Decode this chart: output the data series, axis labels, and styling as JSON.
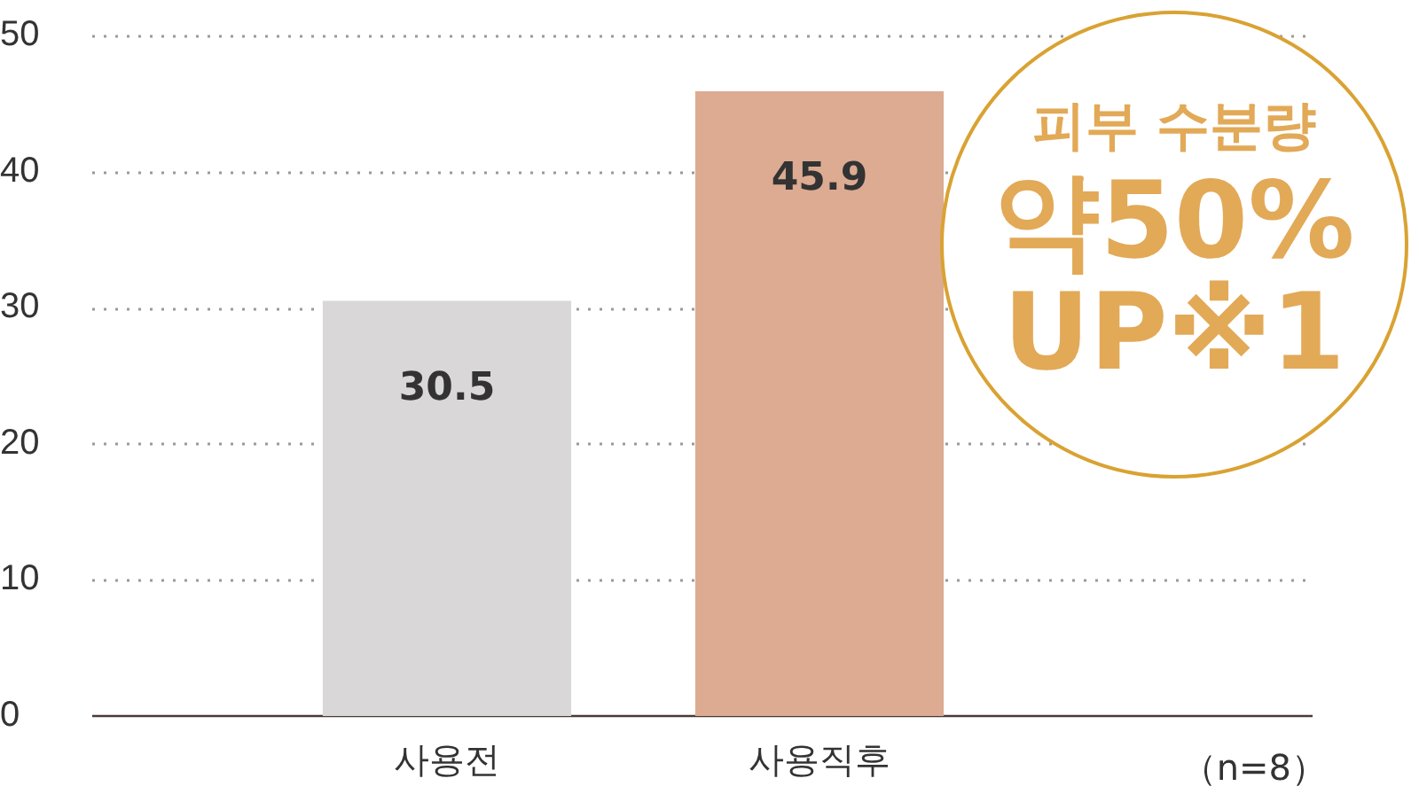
{
  "chart_data": {
    "type": "bar",
    "categories": [
      "사용전",
      "사용직후"
    ],
    "values": [
      30.5,
      45.9
    ],
    "colors": [
      "#d9d7d8",
      "#dcab92"
    ],
    "ylim": [
      0,
      50
    ],
    "yticks": [
      0,
      10,
      20,
      30,
      40,
      50
    ],
    "grid": "y",
    "data_labels": true,
    "legend": false,
    "annotations": [
      "피부 수분량\n약50%\nUP※1",
      "（n=8）"
    ]
  }
}
